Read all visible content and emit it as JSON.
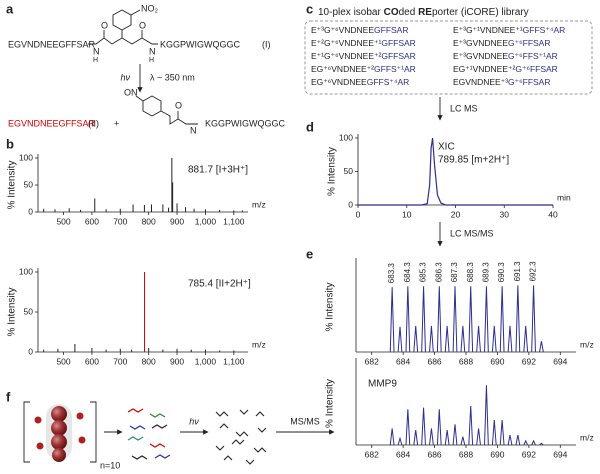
{
  "panel_labels": [
    "a",
    "b",
    "c",
    "d",
    "e",
    "f"
  ],
  "scheme_a": {
    "peptide_left": "EGVNDNEEGFFSAR",
    "peptide_right": "KGGPWIGWQGGC",
    "compound_1": "(I)",
    "nitro": "NO₂",
    "carbonyl": "O",
    "amide_n": "N",
    "amide_h": "H",
    "light": "hν",
    "wavelength": "λ ~ 350 nm",
    "product_peptide": "EGVNDNEEGFFSAR",
    "compound_2": "(II)",
    "plus": "+",
    "nitroso": "ON",
    "product_right": "KGGPWIGWQGGC"
  },
  "library": {
    "title_parts": [
      "10-plex isobar ",
      "CO",
      "ded ",
      "RE",
      "porter (iCORE) library"
    ],
    "entries": [
      {
        "plain": "E⁺³G⁺⁶VNDNEE",
        "blue": "GFFSAR"
      },
      {
        "plain": "E⁺²G⁺⁶VNDNEE⁺¹",
        "blue": "GFFSAR"
      },
      {
        "plain": "E⁺¹G⁺⁶VNDNEE⁺²",
        "blue": "GFFSAR"
      },
      {
        "plain": "EG⁺⁶VNDNEE⁺²",
        "blue": "GFFS⁺¹AR"
      },
      {
        "plain": "EG⁺⁶VNDNEE",
        "blue": "GFFS⁺⁴AR"
      },
      {
        "plain": "E⁺³G⁺¹VNDNEE⁺¹",
        "blue": "GFFS⁺⁴AR"
      },
      {
        "plain": "E⁺³GVNDNEE",
        "blue": "G⁺⁶FFSAR"
      },
      {
        "plain": "E⁺³GVNDNEE",
        "blue": "G⁺⁶FFS⁺¹AR"
      },
      {
        "plain": "EG⁺¹VNDNEE⁺²",
        "blue": "G⁺⁶FFSAR"
      },
      {
        "plain": "EGVNDNEE⁺³",
        "blue": "G⁺⁶FFSAR"
      }
    ]
  },
  "arrows": {
    "lc_ms": "LC MS",
    "lc_msms": "LC MS/MS"
  },
  "scheme_f": {
    "n": "n=10",
    "light": "hν",
    "msms": "MS/MS"
  },
  "chart_data": [
    {
      "type": "spectrum",
      "xlabel": "m/z",
      "ylabel": "% Intensity",
      "annotations": [
        "881.7 [I+3H⁺]"
      ],
      "xlim": [
        410,
        1150
      ],
      "xticks": [
        500,
        600,
        700,
        800,
        900,
        {
          "value": 1000,
          "label": "1,000"
        },
        {
          "value": 1100,
          "label": "1,100"
        }
      ],
      "ylim": [
        0,
        100
      ],
      "yticks": [
        0,
        50,
        100
      ],
      "color": "#222222",
      "x": [
        430,
        470,
        520,
        560,
        610,
        650,
        700,
        745,
        785,
        810,
        850,
        870,
        881.7,
        884.5,
        900,
        930,
        960,
        1000,
        1050,
        1100,
        1130
      ],
      "values": [
        6,
        5,
        7,
        4,
        25,
        5,
        6,
        14,
        13,
        14,
        14,
        8,
        100,
        55,
        16,
        9,
        6,
        5,
        4,
        3,
        3
      ]
    },
    {
      "type": "spectrum",
      "xlabel": "m/z",
      "ylabel": "% Intensity",
      "annotations": [
        "785.4 [II+2H⁺]"
      ],
      "xlim": [
        410,
        1150
      ],
      "xticks": [
        500,
        600,
        700,
        800,
        900,
        {
          "value": 1000,
          "label": "1,000"
        },
        {
          "value": 1100,
          "label": "1,100"
        }
      ],
      "ylim": [
        0,
        100
      ],
      "yticks": [
        0,
        50,
        100
      ],
      "x": [
        430,
        480,
        540,
        600,
        650,
        700,
        740,
        785.4,
        800,
        850,
        900,
        950,
        1000,
        1050,
        1100
      ],
      "values": [
        3,
        4,
        10,
        5,
        3,
        4,
        3,
        100,
        5,
        3,
        4,
        3,
        3,
        2,
        2
      ],
      "colors": [
        "#222222",
        "#222222",
        "#222222",
        "#222222",
        "#222222",
        "#222222",
        "#222222",
        "#d40000",
        "#222222",
        "#222222",
        "#222222",
        "#222222",
        "#222222",
        "#222222",
        "#222222"
      ]
    },
    {
      "type": "line",
      "xlabel": "min",
      "ylabel": "% Intensity",
      "annotations": [
        "XIC",
        "789.85 [m+2H⁺]"
      ],
      "xlim": [
        0,
        40
      ],
      "xticks": [
        0,
        10,
        20,
        30,
        40
      ],
      "ylim": [
        0,
        100
      ],
      "yticks": [
        0,
        50,
        100
      ],
      "color": "#2b2f8f",
      "x": [
        0,
        13,
        14.2,
        14.7,
        15,
        15.3,
        15.7,
        16.3,
        17,
        18,
        40
      ],
      "values": [
        0,
        0,
        2,
        30,
        85,
        100,
        60,
        15,
        3,
        0,
        0
      ]
    },
    {
      "type": "profile",
      "xlabel": "m/z",
      "ylabel": "% Intensity",
      "annotations": [],
      "peak_labels": true,
      "xlim": [
        681,
        695
      ],
      "xticks": [
        682,
        684,
        686,
        688,
        690,
        692,
        694
      ],
      "ylim": [
        0,
        100
      ],
      "color": "#2b2f8f",
      "x": [
        683.3,
        684.3,
        685.3,
        686.3,
        687.3,
        688.3,
        689.3,
        690.3,
        691.3,
        692.3
      ],
      "values": [
        72,
        73,
        73,
        73,
        73,
        73,
        73,
        73,
        74,
        74
      ],
      "isotope_x": [
        683.8,
        684.8,
        685.8,
        686.8,
        687.8,
        688.8,
        689.8,
        690.8,
        691.8,
        692.8
      ],
      "isotope_values": [
        28,
        29,
        29,
        29,
        29,
        29,
        29,
        29,
        29,
        12
      ]
    },
    {
      "type": "profile",
      "xlabel": "m/z",
      "ylabel": "% Intensity",
      "annotations": [
        "MMP9"
      ],
      "peak_labels": false,
      "xlim": [
        681,
        695
      ],
      "xticks": [
        682,
        684,
        686,
        688,
        690,
        692,
        694
      ],
      "ylim": [
        0,
        100
      ],
      "color": "#2b2f8f",
      "x": [
        683.3,
        684.3,
        685.3,
        686.3,
        687.3,
        688.3,
        689.3,
        690.3,
        691.3,
        692.3
      ],
      "values": [
        20,
        43,
        45,
        43,
        25,
        47,
        72,
        30,
        12,
        5
      ],
      "isotope_x": [
        683.8,
        684.8,
        685.8,
        686.8,
        687.8,
        688.8,
        689.8,
        690.8,
        691.8,
        692.8
      ],
      "isotope_values": [
        8,
        18,
        20,
        18,
        10,
        20,
        30,
        12,
        5,
        2
      ]
    }
  ]
}
